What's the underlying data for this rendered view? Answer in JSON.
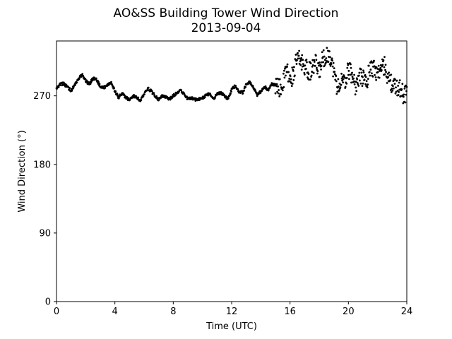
{
  "chart_data": {
    "type": "scatter",
    "title": "AO&SS Building Tower Wind Direction",
    "subtitle": "2013-09-04",
    "xlabel": "Time (UTC)",
    "ylabel": "Wind Direction (°)",
    "xlim": [
      0,
      24
    ],
    "ylim": [
      0,
      342
    ],
    "xticks": [
      0,
      4,
      8,
      12,
      16,
      20,
      24
    ],
    "yticks": [
      0,
      90,
      180,
      270
    ],
    "grid": false,
    "legend": "none",
    "marker_color": "#000000",
    "series": [
      {
        "x": [
          0.0,
          0.25,
          0.5,
          0.75,
          1.0,
          1.25,
          1.5,
          1.75,
          2.0,
          2.25,
          2.5,
          2.75,
          3.0,
          3.25,
          3.5,
          3.75,
          4.0,
          4.25,
          4.5,
          4.75,
          5.0,
          5.25,
          5.5,
          5.75,
          6.0,
          6.25,
          6.5,
          6.75,
          7.0,
          7.25,
          7.5,
          7.75,
          8.0,
          8.25,
          8.5,
          8.75,
          9.0,
          9.25,
          9.5,
          9.75,
          10.0,
          10.25,
          10.5,
          10.75,
          11.0,
          11.25,
          11.5,
          11.75,
          12.0,
          12.25,
          12.5,
          12.75,
          13.0,
          13.25,
          13.5,
          13.75,
          14.0,
          14.25,
          14.5,
          14.75,
          15.0,
          15.25,
          15.5,
          15.75,
          16.0,
          16.25,
          16.5,
          16.75,
          17.0,
          17.25,
          17.5,
          17.75,
          18.0,
          18.25,
          18.5,
          18.75,
          19.0,
          19.25,
          19.5,
          19.75,
          20.0,
          20.25,
          20.5,
          20.75,
          21.0,
          21.25,
          21.5,
          21.75,
          22.0,
          22.25,
          22.5,
          22.75,
          23.0,
          23.25,
          23.5,
          23.75,
          24.0
        ],
        "y": [
          280,
          285,
          286,
          281,
          277,
          284,
          292,
          298,
          290,
          285,
          293,
          291,
          282,
          281,
          284,
          288,
          276,
          268,
          273,
          268,
          265,
          270,
          268,
          263,
          273,
          280,
          276,
          270,
          265,
          270,
          268,
          266,
          270,
          274,
          278,
          272,
          266,
          267,
          265,
          266,
          267,
          271,
          273,
          266,
          272,
          274,
          270,
          266,
          278,
          283,
          276,
          274,
          285,
          288,
          280,
          271,
          276,
          282,
          278,
          285,
          284,
          280,
          283,
          306,
          289,
          300,
          320,
          315,
          310,
          302,
          304,
          312,
          302,
          320,
          322,
          323,
          302,
          280,
          290,
          286,
          305,
          298,
          282,
          294,
          295,
          286,
          310,
          305,
          300,
          306,
          310,
          290,
          285,
          280,
          282,
          272,
          274
        ]
      }
    ]
  }
}
